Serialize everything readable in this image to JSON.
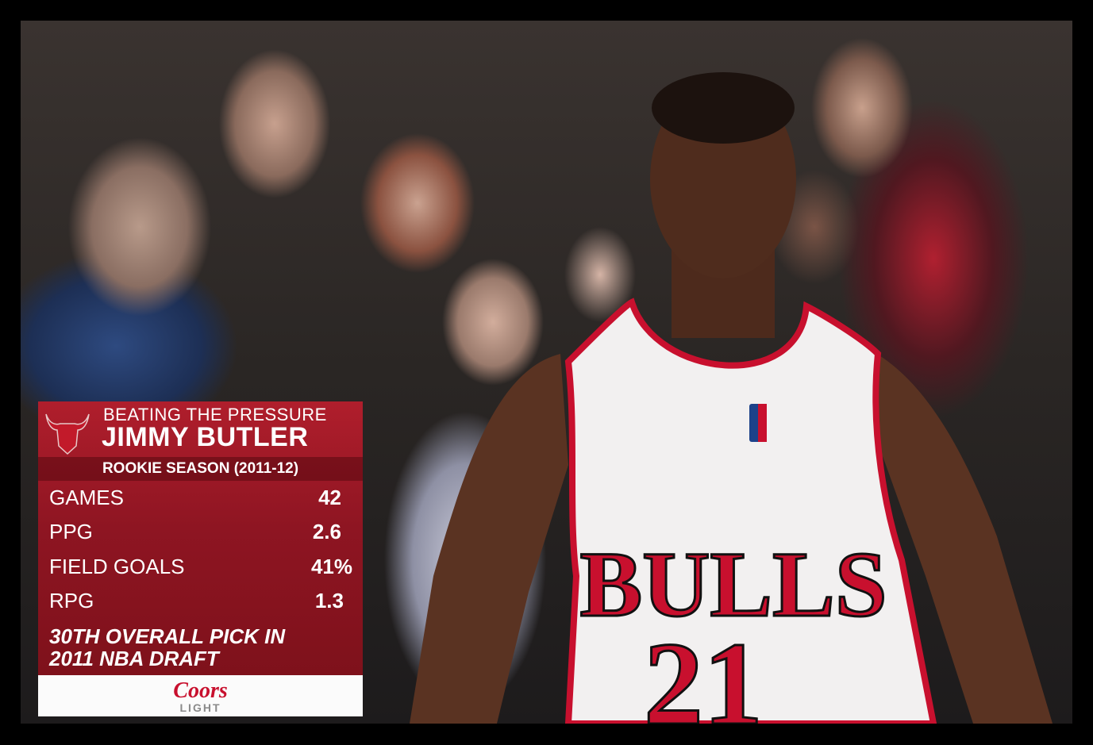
{
  "overlay": {
    "headline": "BEATING THE PRESSURE",
    "player_name": "JIMMY BUTLER",
    "subheader": "ROOKIE SEASON (2011-12)",
    "stats": [
      {
        "label": "GAMES",
        "value": "42"
      },
      {
        "label": "PPG",
        "value": "2.6"
      },
      {
        "label": "FIELD GOALS",
        "value": "41%"
      },
      {
        "label": "RPG",
        "value": "1.3"
      }
    ],
    "note_line1": "30TH OVERALL PICK IN",
    "note_line2": "2011 NBA DRAFT",
    "sponsor": {
      "brand": "Coors",
      "sub": "LIGHT"
    },
    "team_logo": "chicago-bulls-logo"
  },
  "jersey": {
    "team": "BULLS",
    "number": "21"
  },
  "colors": {
    "panel_red": "#9a1826",
    "jersey_red": "#c8102e",
    "jersey_white": "#f2f0f0"
  }
}
